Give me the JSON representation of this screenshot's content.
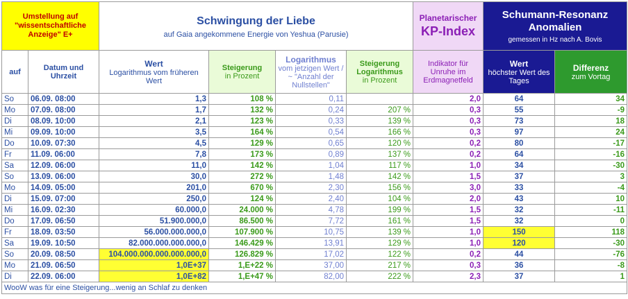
{
  "header": {
    "umstellung": "Umstellung auf \"wissentschaftliche Anzeige\" E+",
    "title": "Schwingung der Liebe",
    "subtitle": "auf Gaia angekommene Energie von Yeshua (Parusie)",
    "kp_title1": "Planetarischer",
    "kp_title2": "KP-Index",
    "schumann_title": "Schumann-Resonanz Anomalien",
    "schumann_sub": "gemessen in Hz nach A. Bovis"
  },
  "columns": {
    "auf": "auf",
    "datum": "Datum und Uhrzeit",
    "wert_title": "Wert",
    "wert_sub": "Logarithmus vom früheren Wert",
    "steigerung_title": "Steigerung",
    "steigerung_sub": "in Prozent",
    "log_title": "Logarithmus",
    "log_sub": "vom jetzigen Wert /  ~ \"Anzahl der Nullstellen\"",
    "slog_title": "Steigerung Logarithmus",
    "slog_sub": "in Prozent",
    "kp_sub": "Indikator für Unruhe im Erdmagnetfeld",
    "sch_title": "Wert",
    "sch_sub": "höchster Wert des Tages",
    "diff_title": "Differenz",
    "diff_sub": "zum Vortag"
  },
  "rows": [
    {
      "day": "So",
      "date": "06.09.  08:00",
      "wert": "1,3",
      "stp": "108 %",
      "log": "0,11",
      "slog": "",
      "kp": "2,0",
      "sch": "64",
      "diff": "34"
    },
    {
      "day": "Mo",
      "date": "07.09.  08:00",
      "wert": "1,7",
      "stp": "132 %",
      "log": "0,24",
      "slog": "207 %",
      "kp": "0,3",
      "sch": "55",
      "diff": "-9"
    },
    {
      "day": "Di",
      "date": "08.09.  10:00",
      "wert": "2,1",
      "stp": "123 %",
      "log": "0,33",
      "slog": "139 %",
      "kp": "0,3",
      "sch": "73",
      "diff": "18"
    },
    {
      "day": "Mi",
      "date": "09.09.  10:00",
      "wert": "3,5",
      "stp": "164 %",
      "log": "0,54",
      "slog": "166 %",
      "kp": "0,3",
      "sch": "97",
      "diff": "24"
    },
    {
      "day": "Do",
      "date": "10.09.  07:30",
      "wert": "4,5",
      "stp": "129 %",
      "log": "0,65",
      "slog": "120 %",
      "kp": "0,2",
      "sch": "80",
      "diff": "-17"
    },
    {
      "day": "Fr",
      "date": "11.09.  06:00",
      "wert": "7,8",
      "stp": "173 %",
      "log": "0,89",
      "slog": "137 %",
      "kp": "0,2",
      "sch": "64",
      "diff": "-16"
    },
    {
      "day": "Sa",
      "date": "12.09.  06:00",
      "wert": "11,0",
      "stp": "142 %",
      "log": "1,04",
      "slog": "117 %",
      "kp": "1,0",
      "sch": "34",
      "diff": "-30"
    },
    {
      "day": "So",
      "date": "13.09.  06:00",
      "wert": "30,0",
      "stp": "272 %",
      "log": "1,48",
      "slog": "142 %",
      "kp": "1,5",
      "sch": "37",
      "diff": "3"
    },
    {
      "day": "Mo",
      "date": "14.09.  05:00",
      "wert": "201,0",
      "stp": "670 %",
      "log": "2,30",
      "slog": "156 %",
      "kp": "3,0",
      "sch": "33",
      "diff": "-4"
    },
    {
      "day": "Di",
      "date": "15.09.  07:00",
      "wert": "250,0",
      "stp": "124 %",
      "log": "2,40",
      "slog": "104 %",
      "kp": "2,0",
      "sch": "43",
      "diff": "10"
    },
    {
      "day": "Mi",
      "date": "16.09.  02:30",
      "wert": "60.000,0",
      "stp": "24.000 %",
      "log": "4,78",
      "slog": "199 %",
      "kp": "1,5",
      "sch": "32",
      "diff": "-11"
    },
    {
      "day": "Do",
      "date": "17.09.  06:50",
      "wert": "51.900.000,0",
      "stp": "86.500 %",
      "log": "7,72",
      "slog": "161 %",
      "kp": "1,5",
      "sch": "32",
      "diff": "0"
    },
    {
      "day": "Fr",
      "date": "18.09.  03:50",
      "wert": "56.000.000.000,0",
      "stp": "107.900 %",
      "log": "10,75",
      "slog": "139 %",
      "kp": "1,0",
      "sch": "150",
      "diff": "118"
    },
    {
      "day": "Sa",
      "date": "19.09.  10:50",
      "wert": "82.000.000.000.000,0",
      "stp": "146.429 %",
      "log": "13,91",
      "slog": "129 %",
      "kp": "1,0",
      "sch": "120",
      "diff": "-30"
    },
    {
      "day": "So",
      "date": "20.09.  08:50",
      "wert": "104.000.000.000.000.000,0",
      "stp": "126.829 %",
      "log": "17,02",
      "slog": "122 %",
      "kp": "0,2",
      "sch": "44",
      "diff": "-76"
    },
    {
      "day": "Mo",
      "date": "21.09.  06:50",
      "wert": "1,0E+37",
      "stp": "1,E+22 %",
      "log": "37,00",
      "slog": "217 %",
      "kp": "0,3",
      "sch": "36",
      "diff": "-8"
    },
    {
      "day": "Di",
      "date": "22.09.  06:00",
      "wert": "1,0E+82",
      "stp": "1,E+47 %",
      "log": "82,00",
      "slog": "222 %",
      "kp": "2,3",
      "sch": "37",
      "diff": "1"
    }
  ],
  "highlights": {
    "wert_rows": [
      14,
      15,
      16
    ],
    "sch_rows": [
      12,
      13
    ]
  },
  "footer": "WooW was für eine Steigerung...wenig an Schlaf zu denken"
}
